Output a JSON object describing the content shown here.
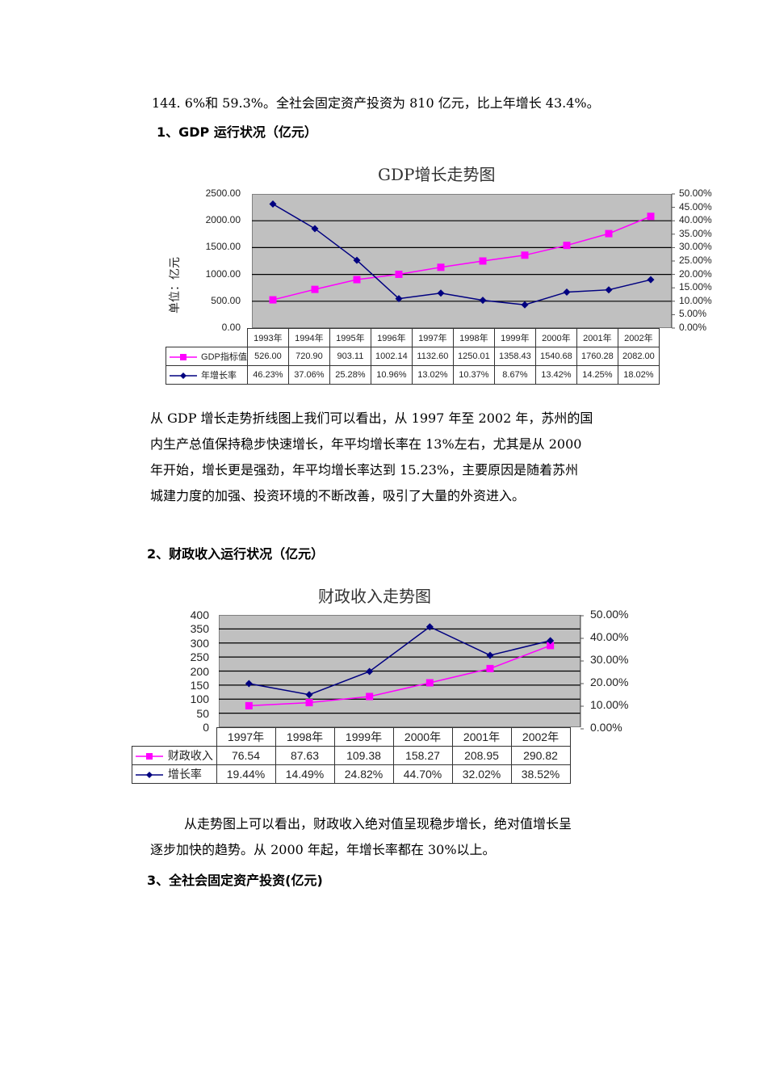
{
  "intro_line": "144. 6%和 59.3%。全社会固定资产投资为 810 亿元，比上年增长 43.4%。",
  "section1": {
    "heading": "1、GDP 运行状况（亿元）",
    "paragraph": [
      "从 GDP 增长走势折线图上我们可以看出，从 1997 年至 2002 年，苏州的国",
      "内生产总值保持稳步快速增长，年平均增长率在 13%左右，尤其是从 2000",
      "年开始，增长更是强劲，年平均增长率达到 15.23%，主要原因是随着苏州",
      "城建力度的加强、投资环境的不断改善，吸引了大量的外资进入。"
    ]
  },
  "section2": {
    "heading": "2、财政收入运行状况（亿元）",
    "paragraph": [
      "从走势图上可以看出，财政收入绝对值呈现稳步增长，绝对值增长呈",
      "逐步加快的趋势。从 2000 年起，年增长率都在 30%以上。"
    ]
  },
  "section3": {
    "heading": "3、全社会固定资产投资(亿元)"
  },
  "colors": {
    "plot_bg": "#c0c0c0",
    "series_value": "#ff00ff",
    "series_rate": "#000080",
    "gridline": "#000000"
  },
  "chart_data": [
    {
      "type": "line",
      "title": "GDP增长走势图",
      "ylabel": "单位：亿元",
      "y2label": "",
      "categories": [
        "1993年",
        "1994年",
        "1995年",
        "1996年",
        "1997年",
        "1998年",
        "1999年",
        "2000年",
        "2001年",
        "2002年"
      ],
      "series": [
        {
          "name": "GDP指标值",
          "axis": "left",
          "marker": "square",
          "color": "#ff00ff",
          "values": [
            526.0,
            720.9,
            903.11,
            1002.14,
            1132.6,
            1250.01,
            1358.43,
            1540.68,
            1760.28,
            2082.0
          ],
          "labels": [
            "526.00",
            "720.90",
            "903.11",
            "1002.14",
            "1132.60",
            "1250.01",
            "1358.43",
            "1540.68",
            "1760.28",
            "2082.00"
          ]
        },
        {
          "name": "年增长率",
          "axis": "right",
          "marker": "diamond",
          "color": "#000080",
          "values": [
            46.23,
            37.06,
            25.28,
            10.96,
            13.02,
            10.37,
            8.67,
            13.42,
            14.25,
            18.02
          ],
          "labels": [
            "46.23%",
            "37.06%",
            "25.28%",
            "10.96%",
            "13.02%",
            "10.37%",
            "8.67%",
            "13.42%",
            "14.25%",
            "18.02%"
          ]
        }
      ],
      "ylim": [
        0,
        2500
      ],
      "y2lim": [
        0,
        50
      ],
      "yticks": [
        "2500.00",
        "2000.00",
        "1500.00",
        "1000.00",
        "500.00",
        "0.00"
      ],
      "y2ticks": [
        "50.00%",
        "45.00%",
        "40.00%",
        "35.00%",
        "30.00%",
        "25.00%",
        "20.00%",
        "15.00%",
        "10.00%",
        "5.00%",
        "0.00%"
      ],
      "grid": true,
      "legend_position": "data-table-bottom"
    },
    {
      "type": "line",
      "title": "财政收入走势图",
      "ylabel": "",
      "categories": [
        "1997年",
        "1998年",
        "1999年",
        "2000年",
        "2001年",
        "2002年"
      ],
      "series": [
        {
          "name": "财政收入",
          "axis": "left",
          "marker": "square",
          "color": "#ff00ff",
          "values": [
            76.54,
            87.63,
            109.38,
            158.27,
            208.95,
            290.82
          ],
          "labels": [
            "76.54",
            "87.63",
            "109.38",
            "158.27",
            "208.95",
            "290.82"
          ]
        },
        {
          "name": "增长率",
          "axis": "right",
          "marker": "diamond",
          "color": "#000080",
          "values": [
            19.44,
            14.49,
            24.82,
            44.7,
            32.02,
            38.52
          ],
          "labels": [
            "19.44%",
            "14.49%",
            "24.82%",
            "44.70%",
            "32.02%",
            "38.52%"
          ]
        }
      ],
      "ylim": [
        0,
        400
      ],
      "y2lim": [
        0,
        50
      ],
      "yticks": [
        "400",
        "350",
        "300",
        "250",
        "200",
        "150",
        "100",
        "50",
        "0"
      ],
      "y2ticks": [
        "50.00%",
        "40.00%",
        "30.00%",
        "20.00%",
        "10.00%",
        "0.00%"
      ],
      "grid": true,
      "legend_position": "data-table-bottom"
    }
  ]
}
